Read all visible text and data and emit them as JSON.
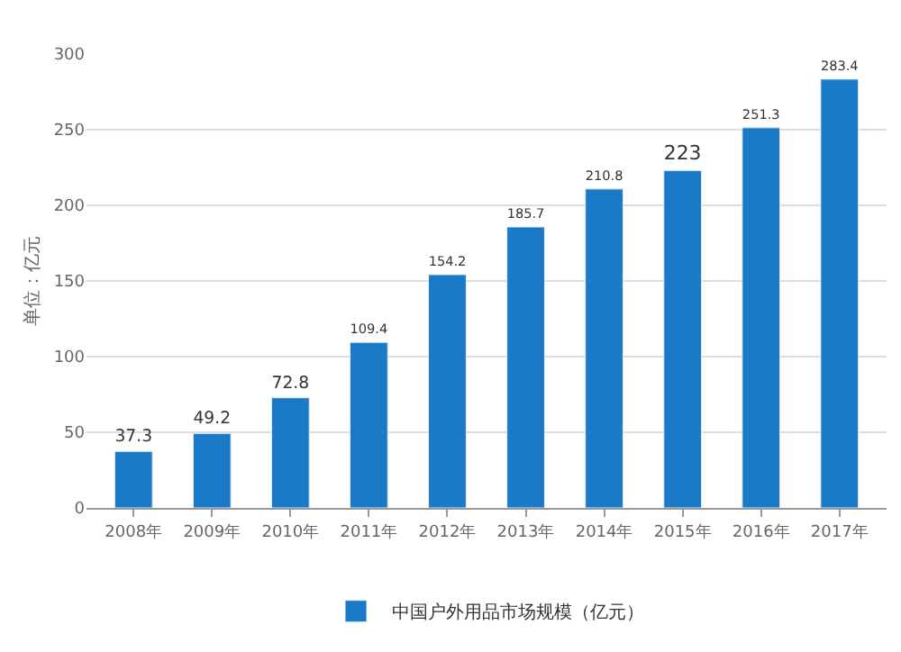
{
  "chart_data": {
    "type": "bar",
    "ylabel": "单位：亿元",
    "categories": [
      "2008年",
      "2009年",
      "2010年",
      "2011年",
      "2012年",
      "2013年",
      "2014年",
      "2015年",
      "2016年",
      "2017年"
    ],
    "series": [
      {
        "name": "中国户外用品市场规模（亿元）",
        "color": "#1a7ac8",
        "values": [
          37.3,
          49.2,
          72.8,
          109.4,
          154.2,
          185.7,
          210.8,
          223,
          251.3,
          283.4
        ]
      }
    ],
    "ylim": [
      0,
      300
    ],
    "yticks": [
      0,
      50,
      100,
      150,
      200,
      250,
      300
    ],
    "grid": "y",
    "legend": "bottom",
    "data_labels": true
  }
}
